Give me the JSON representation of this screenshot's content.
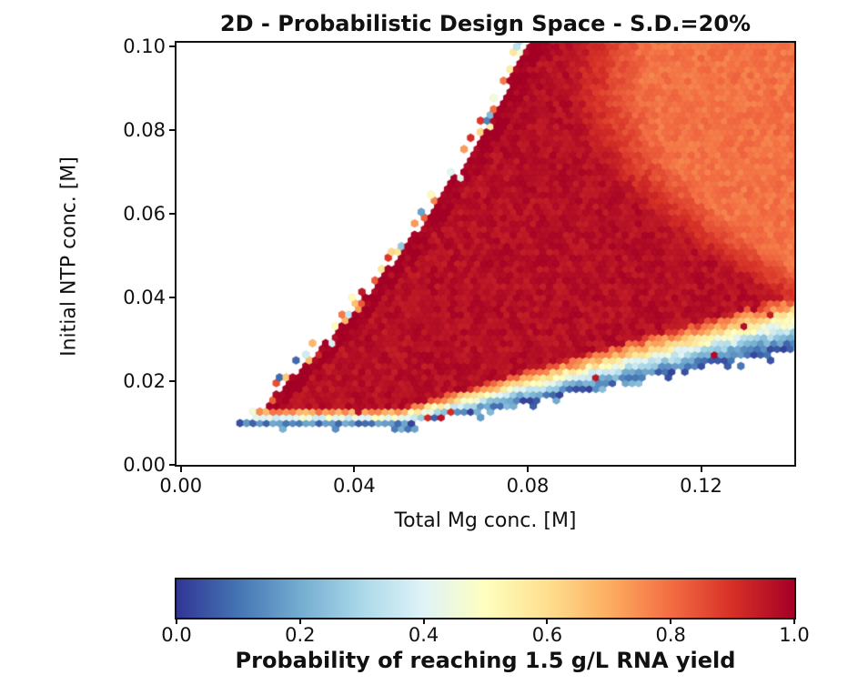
{
  "chart_data": {
    "type": "hexbin-heatmap",
    "title": "2D - Probabilistic Design Space - S.D.=20%",
    "xlabel": "Total Mg conc. [M]",
    "ylabel": "Initial NTP conc. [M]",
    "value_label": "Probability of reaching 1.5 g/L RNA yield",
    "xlim": [
      -0.001,
      0.1415
    ],
    "ylim": [
      0,
      0.1009
    ],
    "x_ticks": [
      0.0,
      0.04,
      0.08,
      0.12
    ],
    "x_tick_labels": [
      "0.00",
      "0.04",
      "0.08",
      "0.12"
    ],
    "y_ticks": [
      0.0,
      0.02,
      0.04,
      0.06,
      0.08,
      0.1
    ],
    "y_tick_labels": [
      "0.00",
      "0.02",
      "0.04",
      "0.06",
      "0.08",
      "0.10"
    ],
    "colorbar": {
      "ticks": [
        0.0,
        0.2,
        0.4,
        0.6,
        0.8,
        1.0
      ],
      "tick_labels": [
        "0.0",
        "0.2",
        "0.4",
        "0.6",
        "0.8",
        "1.0"
      ],
      "range": [
        0,
        1
      ],
      "colormap": "RdYlBu_r",
      "anchors": [
        "#313695",
        "#4575b4",
        "#74add1",
        "#abd9e9",
        "#e0f3f8",
        "#ffffbf",
        "#fee090",
        "#fdae61",
        "#f46d43",
        "#d73027",
        "#a50026"
      ]
    },
    "probability_grid": {
      "comment": "Coarse readout of P(reach 1.5 g/L) vs Total Mg (columns) and Initial NTP (rows, bottom-up); null = outside sampled design space (white).",
      "x_values": [
        0.0,
        0.01,
        0.02,
        0.03,
        0.04,
        0.05,
        0.06,
        0.07,
        0.08,
        0.09,
        0.1,
        0.11,
        0.12,
        0.13,
        0.14
      ],
      "y_values": [
        0.0,
        0.01,
        0.02,
        0.03,
        0.04,
        0.05,
        0.06,
        0.07,
        0.08,
        0.09,
        0.1
      ],
      "values": [
        [
          null,
          null,
          null,
          null,
          null,
          null,
          null,
          null,
          null,
          null,
          null,
          null,
          null,
          null,
          null
        ],
        [
          null,
          null,
          0.28,
          0.27,
          0.25,
          0.19,
          null,
          null,
          null,
          null,
          null,
          null,
          null,
          null,
          null
        ],
        [
          null,
          null,
          null,
          0.95,
          0.96,
          0.96,
          0.96,
          0.96,
          0.58,
          0.31,
          0.09,
          null,
          null,
          null,
          null
        ],
        [
          null,
          null,
          null,
          null,
          0.96,
          0.96,
          0.96,
          0.96,
          0.96,
          0.96,
          0.95,
          0.73,
          0.5,
          0.33,
          0.17
        ],
        [
          null,
          null,
          null,
          null,
          null,
          0.96,
          0.96,
          0.96,
          0.96,
          0.96,
          0.96,
          0.95,
          0.94,
          0.92,
          0.81
        ],
        [
          null,
          null,
          null,
          null,
          null,
          0.9,
          0.96,
          0.96,
          0.96,
          0.96,
          0.96,
          0.95,
          0.94,
          0.93,
          0.92
        ],
        [
          null,
          null,
          null,
          null,
          null,
          null,
          0.9,
          0.96,
          0.96,
          0.96,
          0.96,
          0.95,
          0.93,
          0.91,
          0.88
        ],
        [
          null,
          null,
          null,
          null,
          null,
          null,
          null,
          0.95,
          0.96,
          0.96,
          0.95,
          0.94,
          0.92,
          0.89,
          0.86
        ],
        [
          null,
          null,
          null,
          null,
          null,
          null,
          null,
          0.85,
          0.96,
          0.96,
          0.94,
          0.93,
          0.91,
          0.88,
          0.85
        ],
        [
          null,
          null,
          null,
          null,
          null,
          null,
          null,
          null,
          0.96,
          0.95,
          0.93,
          0.91,
          0.88,
          0.85,
          0.82
        ],
        [
          null,
          null,
          null,
          null,
          null,
          null,
          null,
          null,
          0.95,
          0.95,
          0.93,
          0.9,
          0.86,
          0.83,
          0.79
        ]
      ]
    },
    "field_model": {
      "comment": "Analytic model used to render the fine hexbin field; boundaries in data units.",
      "hex_pitch_x": 0.00152,
      "noise_seed": 12345,
      "upper_boundary_x_of_y": {
        "a": 0.0046,
        "b": 1.0717,
        "c": -3.21
      },
      "core_lower_edge_y_of_x": {
        "base": 0.0135,
        "slope": 0.3,
        "x_start": 0.05
      },
      "data_lower_edge_y_of_x": {
        "base": 0.0095,
        "slope": 0.205,
        "x_start": 0.052
      },
      "orange_onset_x_of_y": {
        "a": 0.2438,
        "b": -3.173,
        "c": 17.15,
        "shift": 0.008,
        "width": 0.018
      },
      "p_core_high": 0.965,
      "p_core_drop": 0.175,
      "band_p_top": 0.9,
      "band_p_bottom": 0.03,
      "boundary_speckle_prob": 0.34
    }
  }
}
